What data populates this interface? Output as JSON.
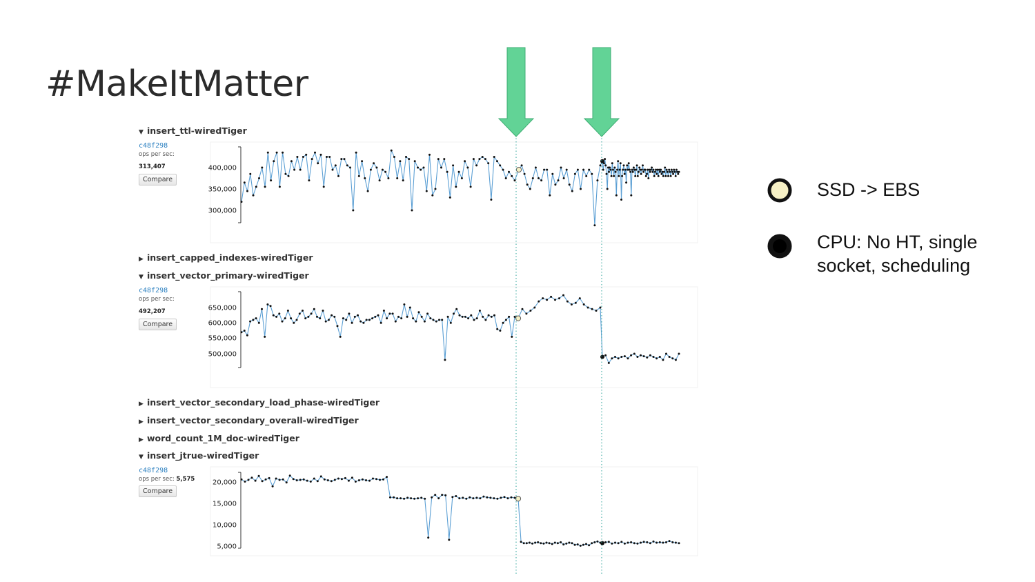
{
  "slide": {
    "title": "#MakeItMatter"
  },
  "sections": [
    {
      "label": "insert_ttl-wiredTiger",
      "expanded": true
    },
    {
      "label": "insert_capped_indexes-wiredTiger",
      "expanded": false
    },
    {
      "label": "insert_vector_primary-wiredTiger",
      "expanded": true
    },
    {
      "label": "insert_vector_secondary_load_phase-wiredTiger",
      "expanded": false
    },
    {
      "label": "insert_vector_secondary_overall-wiredTiger",
      "expanded": false
    },
    {
      "label": "word_count_1M_doc-wiredTiger",
      "expanded": false
    },
    {
      "label": "insert_jtrue-wiredTiger",
      "expanded": true
    }
  ],
  "panels": [
    {
      "hash": "c48f298",
      "ops_label": "ops per sec:",
      "ops_value": "313,407",
      "compare_label": "Compare"
    },
    {
      "hash": "c48f298",
      "ops_label": "ops per sec:",
      "ops_value": "492,207",
      "compare_label": "Compare"
    },
    {
      "hash": "c48f298",
      "ops_label": "ops per sec:",
      "ops_value": "5,575",
      "compare_label": "Compare"
    }
  ],
  "legend": [
    {
      "marker": "light",
      "text_line1": "SSD -> EBS",
      "text_line2": ""
    },
    {
      "marker": "dark",
      "text_line1": "CPU: No HT, single",
      "text_line2": "socket, scheduling"
    }
  ],
  "colors": {
    "line": "#5b9fd4",
    "point": "#111111",
    "arrow": "#62d396",
    "arrow_stroke": "#3fae74",
    "marker_light": "#f6f0c5",
    "marker_dark": "#111111",
    "guide": "#2aa198"
  },
  "chart_data": [
    {
      "type": "line",
      "title": "insert_ttl-wiredTiger",
      "ylabel": "ops per sec",
      "yticks": [
        300000,
        350000,
        400000
      ],
      "ytick_labels": [
        "300,000",
        "350,000",
        "400,000"
      ],
      "ylim": [
        260000,
        450000
      ],
      "marked_points": [
        {
          "index": 94,
          "kind": "light"
        },
        {
          "index": 124,
          "kind": "dark"
        }
      ],
      "values": [
        320000,
        365000,
        345000,
        385000,
        335000,
        355000,
        375000,
        400000,
        355000,
        435000,
        370000,
        415000,
        435000,
        355000,
        435000,
        385000,
        380000,
        415000,
        395000,
        425000,
        395000,
        425000,
        430000,
        370000,
        420000,
        435000,
        410000,
        430000,
        355000,
        425000,
        425000,
        395000,
        405000,
        380000,
        420000,
        420000,
        405000,
        400000,
        300000,
        435000,
        380000,
        415000,
        375000,
        345000,
        395000,
        410000,
        400000,
        370000,
        395000,
        390000,
        375000,
        440000,
        425000,
        375000,
        415000,
        370000,
        425000,
        420000,
        300000,
        415000,
        400000,
        395000,
        400000,
        345000,
        430000,
        335000,
        350000,
        420000,
        400000,
        420000,
        390000,
        330000,
        405000,
        355000,
        390000,
        375000,
        415000,
        400000,
        355000,
        420000,
        405000,
        420000,
        425000,
        420000,
        410000,
        325000,
        425000,
        415000,
        405000,
        395000,
        375000,
        390000,
        380000,
        370000,
        395000,
        405000,
        385000,
        360000,
        350000,
        375000,
        400000,
        375000,
        370000,
        395000,
        395000,
        335000,
        385000,
        360000,
        370000,
        400000,
        375000,
        395000,
        360000,
        345000,
        385000,
        395000,
        350000,
        395000,
        380000,
        395000,
        385000,
        265000,
        370000,
        405000,
        415000,
        395000,
        410000,
        420000,
        405000,
        385000,
        350000,
        400000,
        390000,
        400000,
        395000,
        380000,
        410000,
        395000,
        380000,
        400000,
        390000,
        335000,
        395000,
        415000,
        380000,
        395000,
        410000,
        325000,
        380000,
        395000,
        405000,
        385000,
        395000,
        365000,
        405000,
        395000,
        410000,
        395000,
        390000,
        335000,
        395000,
        390000,
        400000,
        395000,
        380000,
        395000,
        405000,
        380000,
        390000,
        400000,
        395000,
        385000,
        395000,
        405000,
        390000,
        395000,
        395000,
        380000,
        385000,
        395000,
        375000,
        395000,
        390000,
        395000,
        400000,
        390000,
        395000,
        380000,
        390000,
        395000,
        385000,
        395000,
        380000,
        395000,
        390000,
        395000,
        385000,
        390000,
        380000,
        390000,
        400000,
        380000,
        395000,
        390000,
        380000,
        395000,
        390000,
        380000,
        395000,
        390000,
        385000,
        395000,
        390000,
        380000,
        395000,
        390000,
        385000,
        390000
      ]
    },
    {
      "type": "line",
      "title": "insert_vector_primary-wiredTiger",
      "ylabel": "ops per sec",
      "yticks": [
        500000,
        550000,
        600000,
        650000
      ],
      "ytick_labels": [
        "500,000",
        "550,000",
        "600,000",
        "650,000"
      ],
      "ylim": [
        450000,
        700000
      ],
      "marked_points": [],
      "values": []
    },
    {
      "type": "line",
      "title": "insert_jtrue-wiredTiger",
      "ylabel": "ops per sec",
      "yticks": [
        5000,
        10000,
        15000,
        20000
      ],
      "ytick_labels": [
        "5,000",
        "10,000",
        "15,000",
        "20,000"
      ],
      "ylim": [
        5000,
        22500
      ],
      "marked_points": [],
      "values": []
    }
  ]
}
